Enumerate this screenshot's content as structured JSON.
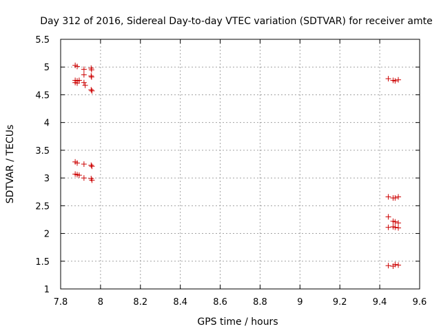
{
  "chart_data": {
    "type": "scatter",
    "title": "Day 312 of 2016, Sidereal Day-to-day VTEC variation (SDTVAR) for receiver amte",
    "xlabel": "GPS time / hours",
    "ylabel": "SDTVAR / TECUs",
    "xlim": [
      7.8,
      9.6
    ],
    "ylim": [
      1,
      5.5
    ],
    "xticks": [
      "7.8",
      "8",
      "8.2",
      "8.4",
      "8.6",
      "8.8",
      "9",
      "9.2",
      "9.4",
      "9.6"
    ],
    "yticks": [
      "1",
      "1.5",
      "2",
      "2.5",
      "3",
      "3.5",
      "4",
      "4.5",
      "5",
      "5.5"
    ],
    "grid": true,
    "marker": "+",
    "color": "#cc0000",
    "points": [
      [
        7.873,
        5.03
      ],
      [
        7.883,
        5.01
      ],
      [
        7.917,
        4.96
      ],
      [
        7.953,
        4.98
      ],
      [
        7.955,
        4.95
      ],
      [
        7.917,
        4.86
      ],
      [
        7.953,
        4.84
      ],
      [
        7.955,
        4.82
      ],
      [
        7.873,
        4.76
      ],
      [
        7.883,
        4.75
      ],
      [
        7.893,
        4.76
      ],
      [
        7.873,
        4.72
      ],
      [
        7.883,
        4.71
      ],
      [
        7.917,
        4.72
      ],
      [
        7.923,
        4.67
      ],
      [
        7.953,
        4.59
      ],
      [
        7.957,
        4.57
      ],
      [
        7.873,
        3.29
      ],
      [
        7.883,
        3.27
      ],
      [
        7.917,
        3.25
      ],
      [
        7.953,
        3.23
      ],
      [
        7.957,
        3.21
      ],
      [
        7.873,
        3.07
      ],
      [
        7.883,
        3.06
      ],
      [
        7.893,
        3.05
      ],
      [
        7.917,
        3.0
      ],
      [
        7.953,
        2.99
      ],
      [
        7.957,
        2.96
      ],
      [
        9.443,
        4.79
      ],
      [
        9.467,
        4.76
      ],
      [
        9.477,
        4.75
      ],
      [
        9.493,
        4.77
      ],
      [
        9.443,
        2.66
      ],
      [
        9.467,
        2.64
      ],
      [
        9.477,
        2.64
      ],
      [
        9.493,
        2.66
      ],
      [
        9.443,
        2.3
      ],
      [
        9.467,
        2.22
      ],
      [
        9.477,
        2.21
      ],
      [
        9.493,
        2.19
      ],
      [
        9.443,
        2.11
      ],
      [
        9.467,
        2.12
      ],
      [
        9.477,
        2.11
      ],
      [
        9.493,
        2.1
      ],
      [
        9.443,
        1.42
      ],
      [
        9.467,
        1.41
      ],
      [
        9.477,
        1.44
      ],
      [
        9.493,
        1.43
      ]
    ]
  }
}
